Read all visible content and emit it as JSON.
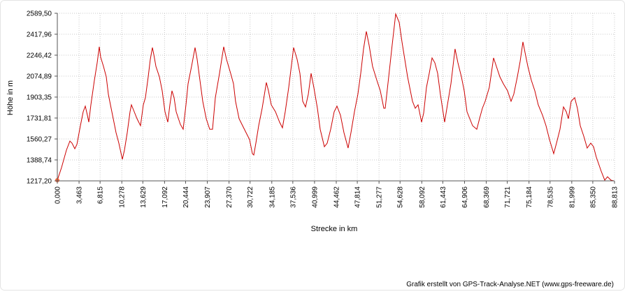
{
  "chart_data": {
    "type": "line",
    "x_label": "Strecke  in  km",
    "y_label": "Höhe  in  m",
    "credit": "Grafik erstellt von GPS-Track-Analyse.NET (www.gps-freeware.de)",
    "grid": true,
    "xlim": [
      0,
      88.813
    ],
    "ylim": [
      1217.2,
      2589.5
    ],
    "xticks": [
      {
        "value": 0,
        "label": "0,000"
      },
      {
        "value": 3.463,
        "label": "3,463"
      },
      {
        "value": 6.815,
        "label": "6,815"
      },
      {
        "value": 10.278,
        "label": "10,278"
      },
      {
        "value": 13.629,
        "label": "13,629"
      },
      {
        "value": 17.092,
        "label": "17,092"
      },
      {
        "value": 20.444,
        "label": "20,444"
      },
      {
        "value": 23.907,
        "label": "23,907"
      },
      {
        "value": 27.37,
        "label": "27,370"
      },
      {
        "value": 30.722,
        "label": "30,722"
      },
      {
        "value": 34.185,
        "label": "34,185"
      },
      {
        "value": 37.536,
        "label": "37,536"
      },
      {
        "value": 40.999,
        "label": "40,999"
      },
      {
        "value": 44.462,
        "label": "44,462"
      },
      {
        "value": 47.814,
        "label": "47,814"
      },
      {
        "value": 51.277,
        "label": "51,277"
      },
      {
        "value": 54.628,
        "label": "54,628"
      },
      {
        "value": 58.092,
        "label": "58,092"
      },
      {
        "value": 61.443,
        "label": "61,443"
      },
      {
        "value": 64.906,
        "label": "64,906"
      },
      {
        "value": 68.369,
        "label": "68,369"
      },
      {
        "value": 71.721,
        "label": "71,721"
      },
      {
        "value": 75.184,
        "label": "75,184"
      },
      {
        "value": 78.535,
        "label": "78,535"
      },
      {
        "value": 81.999,
        "label": "81,999"
      },
      {
        "value": 85.35,
        "label": "85,350"
      },
      {
        "value": 88.813,
        "label": "88,813"
      }
    ],
    "yticks": [
      {
        "value": 1217.2,
        "label": "1217,20"
      },
      {
        "value": 1388.74,
        "label": "1388,74"
      },
      {
        "value": 1560.27,
        "label": "1560,27"
      },
      {
        "value": 1731.81,
        "label": "1731,81"
      },
      {
        "value": 1903.35,
        "label": "1903,35"
      },
      {
        "value": 2074.89,
        "label": "2074,89"
      },
      {
        "value": 2246.42,
        "label": "2246,42"
      },
      {
        "value": 2417.96,
        "label": "2417,96"
      },
      {
        "value": 2589.5,
        "label": "2589,50"
      }
    ],
    "x": [
      0,
      0.67,
      1.45,
      2.01,
      2.34,
      2.79,
      3.12,
      3.68,
      4.12,
      4.46,
      4.79,
      5.01,
      5.35,
      5.91,
      6.35,
      6.69,
      6.91,
      7.35,
      7.8,
      8.13,
      8.47,
      8.91,
      9.36,
      9.81,
      10.36,
      10.7,
      11.14,
      11.59,
      11.81,
      12.26,
      12.7,
      13.26,
      13.71,
      14.04,
      14.49,
      14.82,
      15.15,
      15.38,
      15.71,
      16.27,
      16.71,
      17.16,
      17.61,
      17.94,
      18.27,
      18.61,
      18.94,
      19.61,
      20.06,
      20.5,
      20.84,
      21.39,
      21.95,
      22.29,
      22.73,
      23.18,
      23.73,
      24.29,
      24.74,
      25.18,
      25.85,
      26.52,
      26.97,
      27.63,
      28.08,
      28.41,
      28.97,
      29.53,
      30.09,
      30.64,
      31.09,
      31.31,
      31.65,
      32.09,
      32.65,
      33.32,
      33.65,
      34.1,
      34.77,
      35.43,
      35.88,
      36.33,
      36.88,
      37.66,
      38.22,
      38.67,
      39.11,
      39.56,
      40,
      40.45,
      40.89,
      41.45,
      41.9,
      42.57,
      43.01,
      43.57,
      44.13,
      44.57,
      45.13,
      45.69,
      46.35,
      46.8,
      47.36,
      47.91,
      48.36,
      48.81,
      49.25,
      49.7,
      50.25,
      50.92,
      51.48,
      52.04,
      52.26,
      52.82,
      53.37,
      53.93,
      54.49,
      54.94,
      55.38,
      55.83,
      56.61,
      57.05,
      57.5,
      58.06,
      58.39,
      58.84,
      59.28,
      59.73,
      60.17,
      60.62,
      61.06,
      61.73,
      62.18,
      62.74,
      63.4,
      63.85,
      64.41,
      64.85,
      65.3,
      66.19,
      66.86,
      67.3,
      67.75,
      68.2,
      68.86,
      69.53,
      69.98,
      70.54,
      71.09,
      71.76,
      72.32,
      72.76,
      73.32,
      73.77,
      74.21,
      74.55,
      74.99,
      75.55,
      76.11,
      76.66,
      77.33,
      77.89,
      78.45,
      79.12,
      79.56,
      80.12,
      80.68,
      81.12,
      81.46,
      81.9,
      82.46,
      82.9,
      83.35,
      83.91,
      84.46,
      85.02,
      85.47,
      85.91,
      86.69,
      87.25,
      87.7,
      88.25,
      88.7
    ],
    "series": [
      {
        "color": "#cc0000",
        "values": [
          1223,
          1326,
          1469,
          1543,
          1526,
          1480,
          1515,
          1669,
          1783,
          1829,
          1755,
          1698,
          1840,
          2041,
          2184,
          2315,
          2229,
          2155,
          2069,
          1926,
          1840,
          1726,
          1612,
          1526,
          1394,
          1469,
          1612,
          1783,
          1840,
          1783,
          1726,
          1669,
          1840,
          1898,
          2069,
          2212,
          2309,
          2252,
          2155,
          2069,
          1955,
          1783,
          1698,
          1840,
          1955,
          1898,
          1783,
          1680,
          1640,
          1840,
          2012,
          2155,
          2309,
          2212,
          2041,
          1869,
          1726,
          1640,
          1640,
          1898,
          2098,
          2315,
          2212,
          2098,
          2012,
          1869,
          1726,
          1669,
          1612,
          1555,
          1440,
          1429,
          1526,
          1669,
          1812,
          2023,
          1955,
          1840,
          1783,
          1698,
          1652,
          1783,
          1983,
          2309,
          2212,
          2098,
          1869,
          1823,
          1926,
          2098,
          1983,
          1812,
          1640,
          1497,
          1526,
          1640,
          1783,
          1829,
          1755,
          1612,
          1486,
          1612,
          1783,
          1926,
          2098,
          2298,
          2441,
          2327,
          2155,
          2041,
          1955,
          1812,
          1812,
          2069,
          2327,
          2584,
          2515,
          2355,
          2212,
          2069,
          1869,
          1812,
          1840,
          1698,
          1772,
          1983,
          2098,
          2224,
          2184,
          2098,
          1926,
          1698,
          1840,
          2012,
          2298,
          2184,
          2069,
          1955,
          1783,
          1669,
          1640,
          1726,
          1812,
          1869,
          1983,
          2224,
          2155,
          2069,
          2012,
          1955,
          1869,
          1926,
          2069,
          2195,
          2355,
          2269,
          2155,
          2041,
          1955,
          1840,
          1755,
          1669,
          1555,
          1440,
          1526,
          1640,
          1823,
          1783,
          1726,
          1869,
          1898,
          1812,
          1669,
          1583,
          1486,
          1526,
          1497,
          1412,
          1297,
          1223,
          1251,
          1223,
          1217
        ]
      }
    ]
  }
}
